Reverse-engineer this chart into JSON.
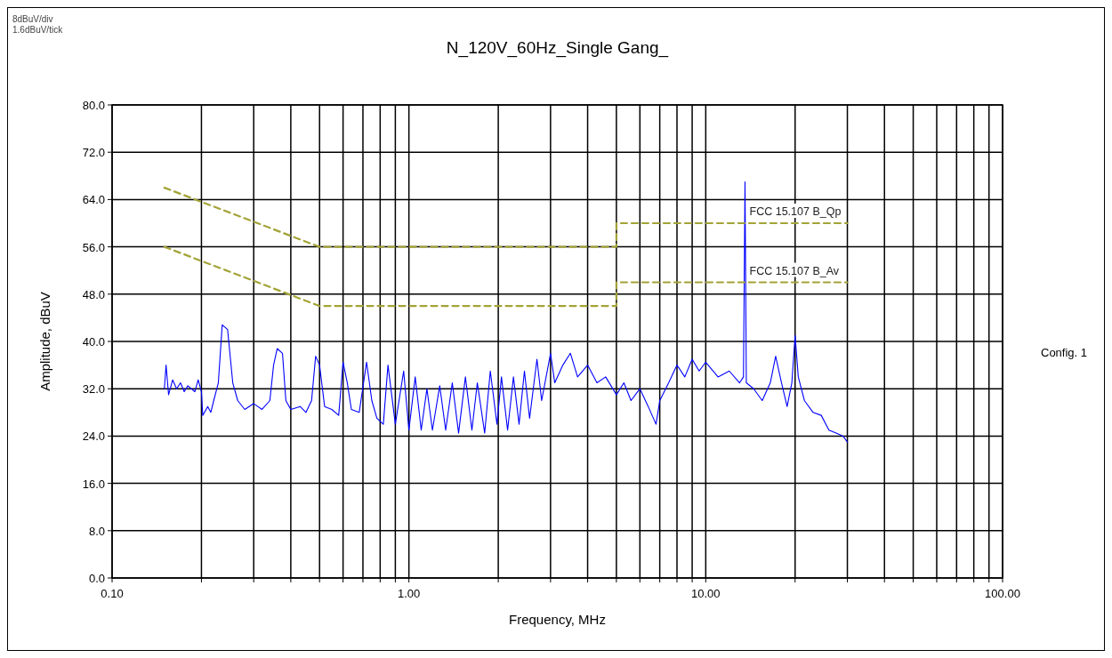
{
  "chart_data": {
    "type": "line",
    "title": "N_120V_60Hz_Single Gang_",
    "xlabel": "Frequency, MHz",
    "ylabel": "Amplitude, dBuV",
    "annotations": [
      "8dBuV/div",
      "1.6dBuV/tick",
      "Config. 1"
    ],
    "log": "x",
    "grid": true,
    "marker": "none",
    "xlim": [
      0.1,
      100
    ],
    "ylim": [
      0,
      80
    ],
    "xticks": [
      {
        "value": 0.1,
        "label": "0.10"
      },
      {
        "value": 0.2,
        "label": null
      },
      {
        "value": 0.3,
        "label": null
      },
      {
        "value": 0.4,
        "label": null
      },
      {
        "value": 0.5,
        "label": null
      },
      {
        "value": 0.6,
        "label": null
      },
      {
        "value": 0.7,
        "label": null
      },
      {
        "value": 0.8,
        "label": null
      },
      {
        "value": 0.9,
        "label": null
      },
      {
        "value": 1,
        "label": "1.00"
      },
      {
        "value": 2,
        "label": null
      },
      {
        "value": 3,
        "label": null
      },
      {
        "value": 4,
        "label": null
      },
      {
        "value": 5,
        "label": null
      },
      {
        "value": 6,
        "label": null
      },
      {
        "value": 7,
        "label": null
      },
      {
        "value": 8,
        "label": null
      },
      {
        "value": 9,
        "label": null
      },
      {
        "value": 10,
        "label": "10.00"
      },
      {
        "value": 20,
        "label": null
      },
      {
        "value": 30,
        "label": null
      },
      {
        "value": 40,
        "label": null
      },
      {
        "value": 50,
        "label": null
      },
      {
        "value": 60,
        "label": null
      },
      {
        "value": 70,
        "label": null
      },
      {
        "value": 80,
        "label": null
      },
      {
        "value": 90,
        "label": null
      },
      {
        "value": 100,
        "label": "100.00"
      }
    ],
    "yticks": [
      {
        "value": 0,
        "label": "0.0"
      },
      {
        "value": 8,
        "label": "8.0"
      },
      {
        "value": 16,
        "label": "16.0"
      },
      {
        "value": 24,
        "label": "24.0"
      },
      {
        "value": 32,
        "label": "32.0"
      },
      {
        "value": 40,
        "label": "40.0"
      },
      {
        "value": 48,
        "label": "48.0"
      },
      {
        "value": 56,
        "label": "56.0"
      },
      {
        "value": 64,
        "label": "64.0"
      },
      {
        "value": 72,
        "label": "72.0"
      },
      {
        "value": 80,
        "label": "80.0"
      }
    ],
    "series": [
      {
        "color": "#0000ff",
        "line_style": "solid",
        "x": [
          0.15,
          0.152,
          0.155,
          0.16,
          0.165,
          0.17,
          0.175,
          0.18,
          0.19,
          0.195,
          0.2,
          0.202,
          0.21,
          0.215,
          0.22,
          0.228,
          0.235,
          0.245,
          0.255,
          0.265,
          0.28,
          0.3,
          0.32,
          0.34,
          0.35,
          0.36,
          0.375,
          0.385,
          0.4,
          0.43,
          0.45,
          0.47,
          0.485,
          0.5,
          0.52,
          0.55,
          0.58,
          0.6,
          0.62,
          0.64,
          0.68,
          0.72,
          0.75,
          0.78,
          0.82,
          0.85,
          0.9,
          0.96,
          1.0,
          1.05,
          1.1,
          1.15,
          1.2,
          1.27,
          1.33,
          1.4,
          1.47,
          1.55,
          1.63,
          1.7,
          1.8,
          1.88,
          1.98,
          2.05,
          2.15,
          2.25,
          2.35,
          2.45,
          2.55,
          2.7,
          2.8,
          3.0,
          3.1,
          3.3,
          3.5,
          3.7,
          4.0,
          4.3,
          4.6,
          5.0,
          5.3,
          5.6,
          6.0,
          6.4,
          6.8,
          7.0,
          7.5,
          8.0,
          8.5,
          9.0,
          9.5,
          10,
          11,
          12,
          13,
          13.4,
          13.56,
          13.7,
          14.5,
          15.5,
          16.5,
          17.2,
          18,
          18.8,
          19.5,
          20.0,
          20.5,
          21.5,
          23,
          24.5,
          26,
          27.5,
          29,
          30
        ],
        "values": [
          32,
          36,
          31,
          33.5,
          32,
          33,
          31.5,
          32.5,
          31.5,
          33.5,
          31.5,
          27.5,
          29,
          28,
          30,
          33,
          42.8,
          42,
          33,
          30,
          28.5,
          29.5,
          28.5,
          30,
          36,
          38.8,
          38,
          30,
          28.5,
          29,
          28,
          30,
          37.5,
          36,
          29,
          28.5,
          27.5,
          36.5,
          33,
          28.5,
          28,
          36.5,
          30,
          27,
          26,
          36,
          26,
          35,
          25,
          34,
          25,
          32,
          25,
          32.5,
          25,
          33,
          24.5,
          34,
          25,
          33,
          24.5,
          35,
          26,
          34,
          25,
          34,
          26,
          35,
          27,
          37,
          30,
          38,
          33,
          36,
          38,
          34,
          36,
          33,
          34,
          31,
          33,
          30,
          32,
          29,
          26,
          30,
          33,
          36,
          34,
          37,
          35,
          36.5,
          34,
          35,
          33,
          34,
          67,
          33,
          32,
          30,
          33,
          37.5,
          33,
          29,
          33,
          41,
          34,
          30,
          28,
          27.5,
          25,
          24.5,
          24,
          23
        ]
      },
      {
        "name": "FCC 15.107 B_Qp",
        "color": "#a3a337",
        "line_style": "dashed",
        "x": [
          0.15,
          0.5,
          5,
          5,
          30
        ],
        "values": [
          66,
          56,
          56,
          60,
          60
        ]
      },
      {
        "name": "FCC 15.107 B_Av",
        "color": "#a3a337",
        "line_style": "dashed",
        "x": [
          0.15,
          0.5,
          5,
          5,
          30
        ],
        "values": [
          56,
          46,
          46,
          50,
          50
        ]
      }
    ]
  }
}
